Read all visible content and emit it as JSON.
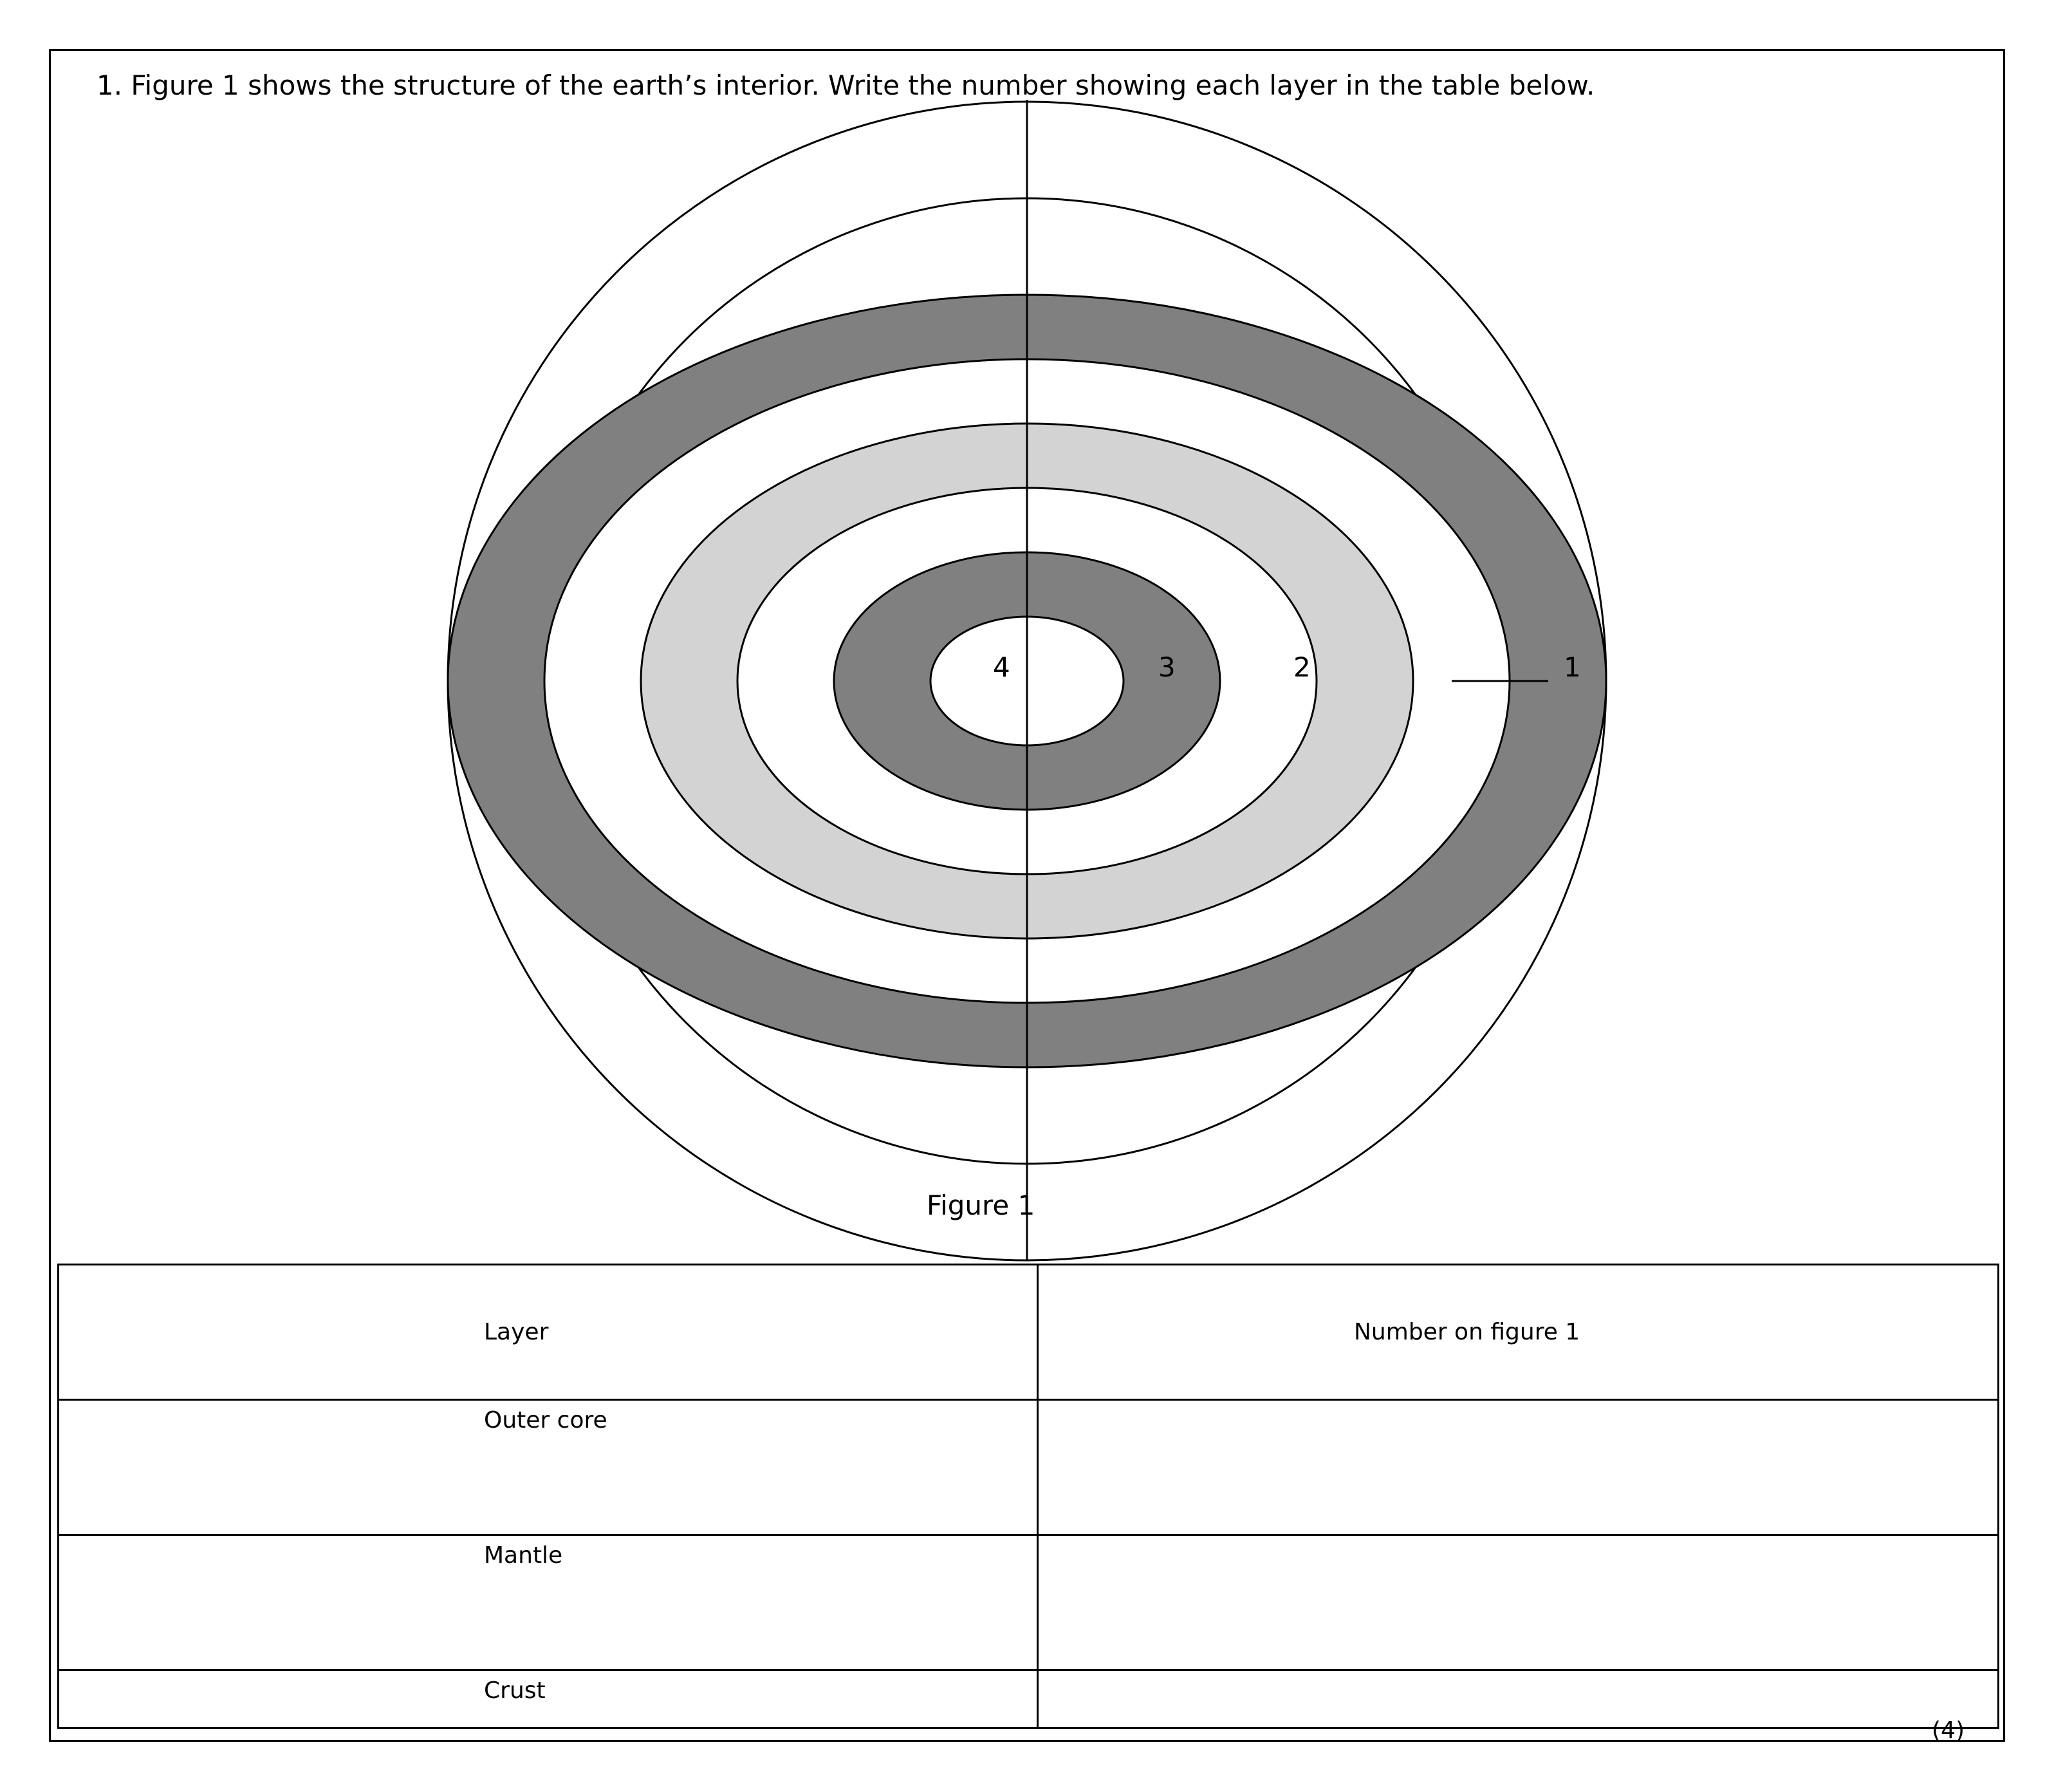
{
  "question": {
    "text": "1. Figure 1 shows the structure of the earth’s interior. Write the number showing each layer in the table below."
  },
  "figure": {
    "caption": "Figure 1",
    "labels": [
      "4",
      "3",
      "2",
      "1"
    ],
    "colors": {
      "dark": "#808080",
      "light": "#d3d3d3",
      "line": "#000000",
      "blank": "#ffffff"
    }
  },
  "table": {
    "headers": [
      "Layer",
      "Number on figure 1"
    ],
    "rows": [
      {
        "layer": "Outer core",
        "number": ""
      },
      {
        "layer": "Mantle",
        "number": ""
      },
      {
        "layer": "Crust",
        "number": ""
      }
    ]
  },
  "marks": "(4)"
}
